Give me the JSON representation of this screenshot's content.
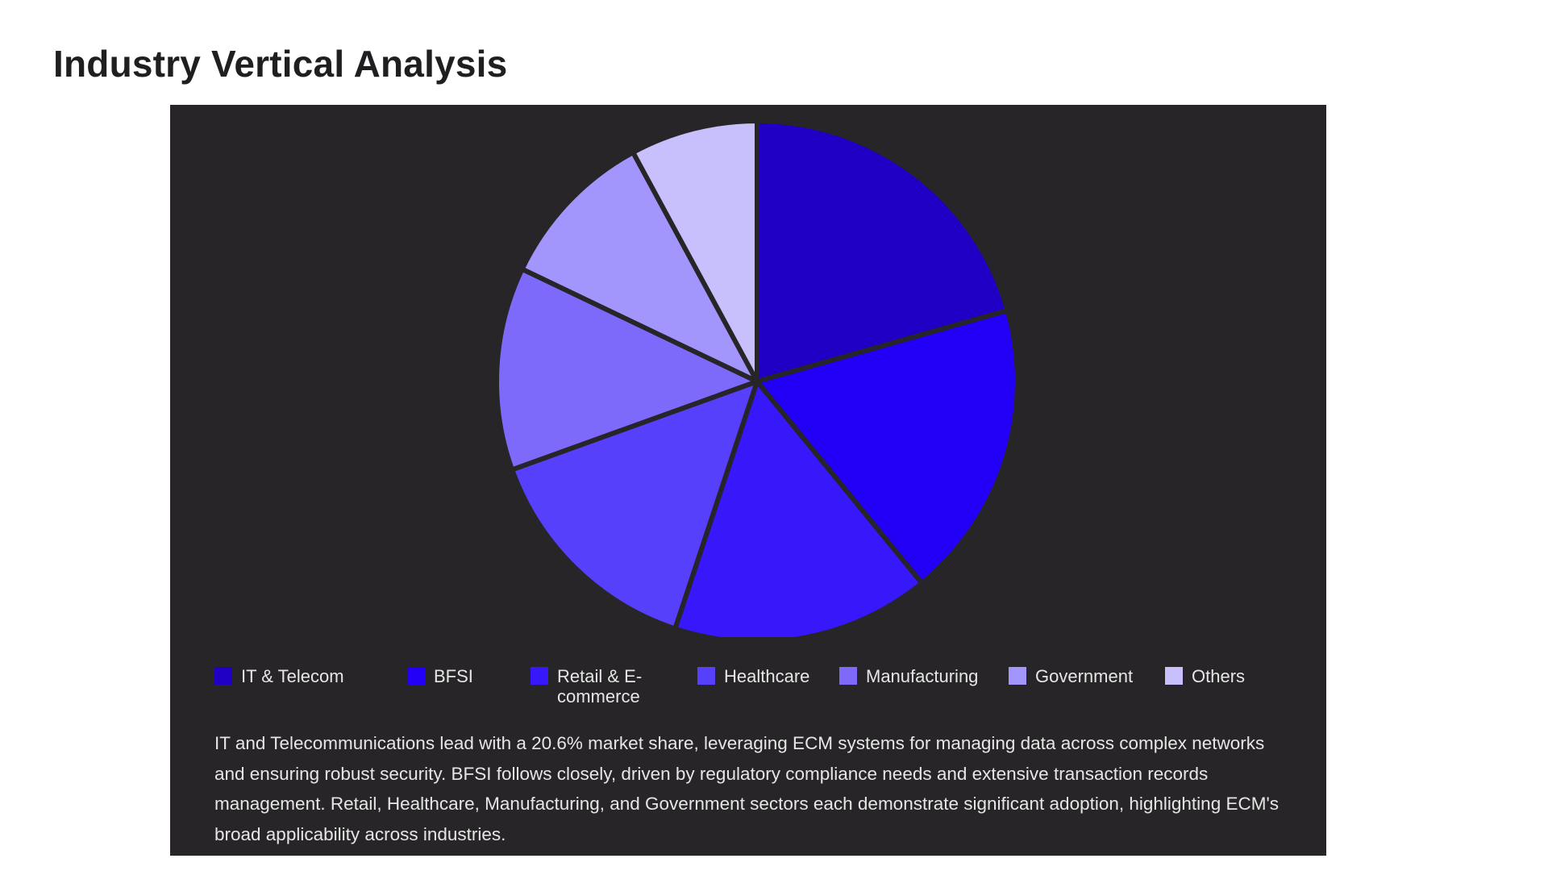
{
  "page": {
    "title": "Industry Vertical Analysis"
  },
  "chart_data": {
    "type": "pie",
    "categories": [
      "IT & Telecom",
      "BFSI",
      "Retail & E-commerce",
      "Healthcare",
      "Manufacturing",
      "Government",
      "Others"
    ],
    "values": [
      20.6,
      18.5,
      16.0,
      14.4,
      12.6,
      10.0,
      7.9
    ],
    "colors": [
      "#2000c4",
      "#2200f6",
      "#3618fb",
      "#5640fb",
      "#7d6afb",
      "#a295fb",
      "#c7c0fd"
    ],
    "legend_position": "bottom",
    "legend": [
      {
        "label": "IT & Telecom"
      },
      {
        "label": "BFSI"
      },
      {
        "label": "Retail & E-commerce"
      },
      {
        "label": "Healthcare"
      },
      {
        "label": "Manufacturing"
      },
      {
        "label": "Government"
      },
      {
        "label": "Others"
      }
    ],
    "description": "IT and Telecommunications lead with a 20.6% market share, leveraging ECM systems for managing data across complex networks and ensuring robust security. BFSI follows closely, driven by regulatory compliance needs and extensive transaction records management. Retail, Healthcare, Manufacturing, and Government sectors each demonstrate significant adoption, highlighting ECM's broad applicability across industries."
  },
  "theme": {
    "panel_background": "#272527",
    "slice_separator": "#272527",
    "text_color": "#e6e6e6",
    "title_color": "#1f1f21"
  }
}
